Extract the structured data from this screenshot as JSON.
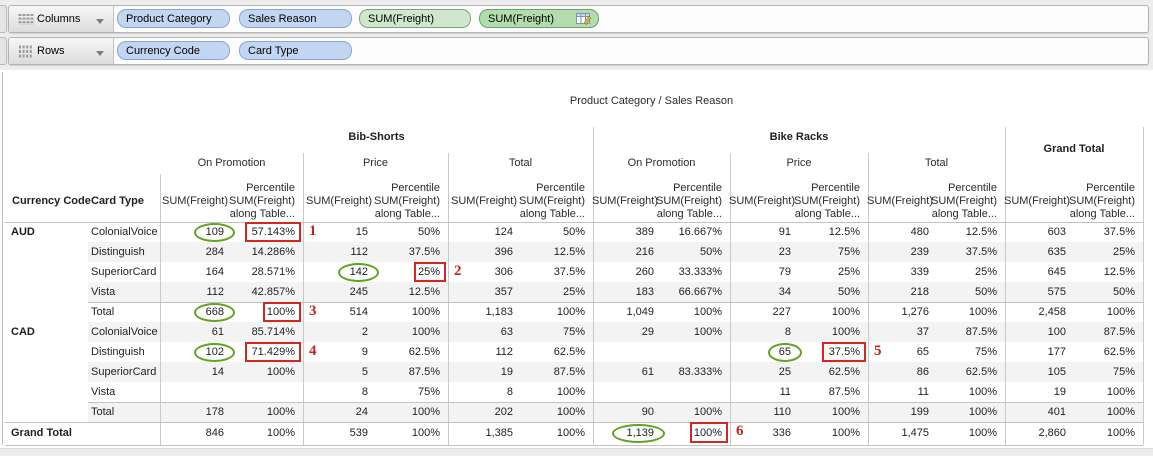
{
  "shelves": {
    "columns": {
      "label": "Columns",
      "pills": [
        {
          "text": "Product Category",
          "type": "dimension"
        },
        {
          "text": "Sales Reason",
          "type": "dimension"
        },
        {
          "text": "SUM(Freight)",
          "type": "measure"
        },
        {
          "text": "SUM(Freight)",
          "type": "measure_with_table_calculation",
          "icon": "table-calculation-icon"
        }
      ]
    },
    "rows": {
      "label": "Rows",
      "pills": [
        {
          "text": "Currency Code",
          "type": "dimension"
        },
        {
          "text": "Card Type",
          "type": "dimension"
        }
      ]
    }
  },
  "icons": {
    "columns_shelf": "grid-columns-icon",
    "rows_shelf": "grid-rows-icon",
    "shelf_dropdown": "chevron-down-icon",
    "table_calc_pill": "table-calculation-icon"
  },
  "table": {
    "title": "Product Category / Sales Reason",
    "row_header_labels": [
      "Currency Code",
      "Card Type"
    ],
    "column_groups": [
      {
        "label": "Bib-Shorts",
        "subgroups": [
          "On Promotion",
          "Price",
          "Total"
        ]
      },
      {
        "label": "Bike Racks",
        "subgroups": [
          "On Promotion",
          "Price",
          "Total"
        ]
      },
      {
        "label": "Grand Total",
        "subgroups": []
      }
    ],
    "measure_header": {
      "sum_label": "SUM(Freight)",
      "percentile_lines": [
        "Percentile",
        "SUM(Freight)",
        "along Table..."
      ]
    },
    "rows": [
      {
        "currency": "AUD",
        "card": "ColonialVoice",
        "type": "detail",
        "values": [
          "109",
          "57.143%",
          "15",
          "50%",
          "124",
          "50%",
          "389",
          "16.667%",
          "91",
          "12.5%",
          "480",
          "12.5%",
          "603",
          "37.5%"
        ]
      },
      {
        "currency": "",
        "card": "Distinguish",
        "type": "detail",
        "values": [
          "284",
          "14.286%",
          "112",
          "37.5%",
          "396",
          "12.5%",
          "216",
          "50%",
          "23",
          "75%",
          "239",
          "37.5%",
          "635",
          "25%"
        ]
      },
      {
        "currency": "",
        "card": "SuperiorCard",
        "type": "detail",
        "values": [
          "164",
          "28.571%",
          "142",
          "25%",
          "306",
          "37.5%",
          "260",
          "33.333%",
          "79",
          "25%",
          "339",
          "25%",
          "645",
          "12.5%"
        ]
      },
      {
        "currency": "",
        "card": "Vista",
        "type": "detail",
        "values": [
          "112",
          "42.857%",
          "245",
          "12.5%",
          "357",
          "25%",
          "183",
          "66.667%",
          "34",
          "50%",
          "218",
          "50%",
          "575",
          "50%"
        ]
      },
      {
        "currency": "",
        "card": "Total",
        "type": "subtotal",
        "values": [
          "668",
          "100%",
          "514",
          "100%",
          "1,183",
          "100%",
          "1,049",
          "100%",
          "227",
          "100%",
          "1,276",
          "100%",
          "2,458",
          "100%"
        ]
      },
      {
        "currency": "CAD",
        "card": "ColonialVoice",
        "type": "detail",
        "values": [
          "61",
          "85.714%",
          "2",
          "100%",
          "63",
          "75%",
          "29",
          "100%",
          "8",
          "100%",
          "37",
          "87.5%",
          "100",
          "87.5%"
        ]
      },
      {
        "currency": "",
        "card": "Distinguish",
        "type": "detail",
        "values": [
          "102",
          "71.429%",
          "9",
          "62.5%",
          "112",
          "62.5%",
          "",
          "",
          "65",
          "37.5%",
          "65",
          "75%",
          "177",
          "62.5%"
        ]
      },
      {
        "currency": "",
        "card": "SuperiorCard",
        "type": "detail",
        "values": [
          "14",
          "100%",
          "5",
          "87.5%",
          "19",
          "87.5%",
          "61",
          "83.333%",
          "25",
          "62.5%",
          "86",
          "62.5%",
          "105",
          "75%"
        ]
      },
      {
        "currency": "",
        "card": "Vista",
        "type": "detail",
        "values": [
          "",
          "",
          "8",
          "75%",
          "8",
          "100%",
          "",
          "",
          "11",
          "87.5%",
          "11",
          "100%",
          "19",
          "100%"
        ]
      },
      {
        "currency": "",
        "card": "Total",
        "type": "subtotal",
        "values": [
          "178",
          "100%",
          "24",
          "100%",
          "202",
          "100%",
          "90",
          "100%",
          "110",
          "100%",
          "199",
          "100%",
          "401",
          "100%"
        ]
      },
      {
        "currency": "Grand Total",
        "card": "",
        "type": "grand_total",
        "values": [
          "846",
          "100%",
          "539",
          "100%",
          "1,385",
          "100%",
          "1,139",
          "100%",
          "336",
          "100%",
          "1,475",
          "100%",
          "2,860",
          "100%"
        ]
      }
    ]
  },
  "annotations": [
    {
      "label": "1",
      "row_index": 0,
      "circle_value_col": 0,
      "box_value_col": 1,
      "circled": "109",
      "boxed": "57.143%"
    },
    {
      "label": "2",
      "row_index": 2,
      "circle_value_col": 2,
      "box_value_col": 3,
      "circled": "142",
      "boxed": "25%"
    },
    {
      "label": "3",
      "row_index": 4,
      "circle_value_col": 0,
      "box_value_col": 1,
      "circled": "668",
      "boxed": "100%"
    },
    {
      "label": "4",
      "row_index": 6,
      "circle_value_col": 0,
      "box_value_col": 1,
      "circled": "102",
      "boxed": "71.429%"
    },
    {
      "label": "5",
      "row_index": 6,
      "circle_value_col": 8,
      "box_value_col": 9,
      "circled": "65",
      "boxed": "37.5%"
    },
    {
      "label": "6",
      "row_index": 10,
      "circle_value_col": 6,
      "box_value_col": 7,
      "circled": "1,139",
      "boxed": "100%"
    }
  ],
  "colors": {
    "pill_dimension": "#c3d6f1",
    "pill_measure": "#cfe7cd",
    "pill_measure_calc": "#b3dcad",
    "annotation_red": "#d2281e",
    "annotation_green": "#5fa321",
    "row_band": "#f3f3f3",
    "grid_line": "#c9c9c9"
  }
}
